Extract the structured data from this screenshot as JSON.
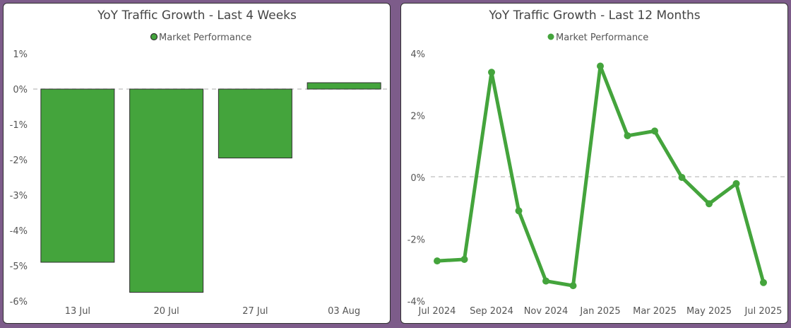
{
  "colors": {
    "series": "#44a43c",
    "bar_stroke": "#2f2f2f",
    "zero_line": "#c8c8c8",
    "background": "#7d5c8a"
  },
  "chart_data": [
    {
      "type": "bar",
      "title": "YoY Traffic Growth - Last 4 Weeks",
      "legend": {
        "label": "Market Performance",
        "position": "top-center"
      },
      "categories": [
        "13 Jul",
        "20 Jul",
        "27 Jul",
        "03 Aug"
      ],
      "series": [
        {
          "name": "Market Performance",
          "values": [
            -4.9,
            -5.75,
            -1.95,
            0.18
          ]
        }
      ],
      "y_ticks": [
        "1%",
        "0%",
        "-1%",
        "-2%",
        "-3%",
        "-4%",
        "-5%",
        "-6%"
      ],
      "ylim": [
        -6,
        1
      ],
      "xlabel": "",
      "ylabel": "",
      "zero_line": "dashed",
      "grid": false
    },
    {
      "type": "line",
      "title": "YoY Traffic Growth - Last 12 Months",
      "legend": {
        "label": "Market Performance",
        "position": "top-center"
      },
      "x": [
        "Jul 2024",
        "Aug 2024",
        "Sep 2024",
        "Oct 2024",
        "Nov 2024",
        "Dec 2024",
        "Jan 2025",
        "Feb 2025",
        "Mar 2025",
        "Apr 2025",
        "May 2025",
        "Jun 2025",
        "Jul 2025"
      ],
      "x_tick_labels": [
        "Jul 2024",
        "Sep 2024",
        "Nov 2024",
        "Jan 2025",
        "Mar 2025",
        "May 2025",
        "Jul 2025"
      ],
      "series": [
        {
          "name": "Market Performance",
          "values": [
            -2.7,
            -2.65,
            3.4,
            -1.08,
            -3.35,
            -3.5,
            3.6,
            1.35,
            1.5,
            0.0,
            -0.85,
            -0.2,
            -3.4
          ]
        }
      ],
      "y_ticks": [
        "4%",
        "2%",
        "0%",
        "-2%",
        "-4%"
      ],
      "ylim": [
        -4,
        4
      ],
      "xlabel": "",
      "ylabel": "",
      "zero_line": "dashed",
      "grid": false
    }
  ]
}
